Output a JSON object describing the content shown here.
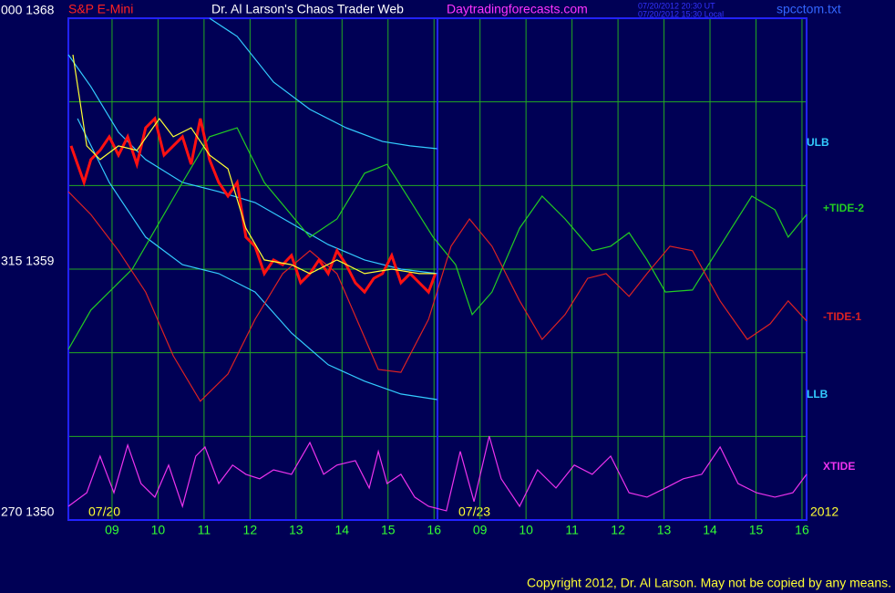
{
  "chart_data": {
    "type": "line",
    "symbol": "S&P E-Mini",
    "title": "Dr. Al Larson's Chaos Trader Web",
    "site": "Daytradingforecasts.com",
    "timestamps": [
      "07/20/2012 20:30 UT",
      "07/20/2012 15:30 Local"
    ],
    "file": "spcctom.txt",
    "date_labels": [
      "07/20",
      "07/23",
      "2012"
    ],
    "footer": "Copyright 2012, Dr. Al Larson. May not be copied by any means.",
    "xlim": [
      0.05,
      16.1
    ],
    "xticks": [
      {
        "value": 1,
        "label": "09"
      },
      {
        "value": 2,
        "label": "10"
      },
      {
        "value": 3,
        "label": "11"
      },
      {
        "value": 4,
        "label": "12"
      },
      {
        "value": 5,
        "label": "13"
      },
      {
        "value": 6,
        "label": "14"
      },
      {
        "value": 7,
        "label": "15"
      },
      {
        "value": 8,
        "label": "16"
      },
      {
        "value": 9,
        "label": "09"
      },
      {
        "value": 10,
        "label": "10"
      },
      {
        "value": 11,
        "label": "11"
      },
      {
        "value": 12,
        "label": "12"
      },
      {
        "value": 13,
        "label": "13"
      },
      {
        "value": 14,
        "label": "14"
      },
      {
        "value": 15,
        "label": "15"
      },
      {
        "value": 16,
        "label": "16"
      }
    ],
    "ylim": [
      1350,
      1368
    ],
    "yticks": [
      {
        "value": 1368,
        "label": "000 1368"
      },
      {
        "value": 1359,
        "label": "315 1359"
      },
      {
        "value": 1350,
        "label": "270 1350"
      }
    ],
    "ygrid": [
      1353,
      1356,
      1362,
      1365
    ],
    "grid": true,
    "series": [
      {
        "name": "ULB",
        "color": "#33ccff",
        "x": [
          3.12,
          3.72,
          4.51,
          5.3,
          6.09,
          6.88,
          7.48,
          8.07
        ],
        "values": [
          1368,
          1367.35,
          1365.71,
          1364.73,
          1364.07,
          1363.58,
          1363.42,
          1363.32
        ]
      },
      {
        "color": "#33ccff",
        "x": [
          0.05,
          0.54,
          1.14,
          1.73,
          2.53,
          3.32,
          4.11,
          4.9,
          5.7,
          6.49,
          7.28,
          8.07
        ],
        "values": [
          1366.69,
          1365.55,
          1363.91,
          1362.93,
          1362.11,
          1361.78,
          1361.39,
          1360.64,
          1359.88,
          1359.33,
          1359.0,
          1358.84
        ]
      },
      {
        "name": "LLB",
        "color": "#33ccff",
        "x": [
          0.25,
          0.94,
          1.73,
          2.53,
          3.32,
          4.11,
          4.9,
          5.7,
          6.49,
          7.28,
          8.07
        ],
        "values": [
          1364.4,
          1362.11,
          1360.15,
          1359.16,
          1358.84,
          1358.18,
          1356.71,
          1355.57,
          1354.98,
          1354.52,
          1354.32
        ]
      },
      {
        "name": "+TIDE-2",
        "color": "#22cc22",
        "x": [
          0.05,
          0.54,
          1.44,
          2.53,
          3.12,
          3.72,
          4.31,
          5.3,
          5.89,
          6.49,
          6.98,
          7.48,
          7.98,
          8.47,
          8.83,
          9.26,
          9.86,
          10.35,
          10.85,
          11.44,
          11.84,
          12.24,
          12.63,
          13.03,
          13.62,
          14.22,
          14.91,
          15.41,
          15.7,
          16.1
        ],
        "values": [
          1356.12,
          1357.53,
          1359.0,
          1362.11,
          1363.75,
          1364.07,
          1362.11,
          1360.15,
          1360.8,
          1362.44,
          1362.76,
          1361.46,
          1360.15,
          1359.16,
          1357.37,
          1358.18,
          1360.47,
          1361.62,
          1360.8,
          1359.66,
          1359.82,
          1360.31,
          1359.33,
          1358.18,
          1358.25,
          1359.82,
          1361.62,
          1361.13,
          1360.15,
          1360.96
        ]
      },
      {
        "name": "-TIDE-1",
        "color": "#dd2222",
        "x": [
          0.05,
          0.54,
          1.14,
          1.73,
          2.33,
          2.92,
          3.52,
          4.11,
          4.71,
          5.3,
          5.89,
          6.49,
          6.79,
          7.28,
          7.88,
          8.37,
          8.77,
          9.26,
          9.86,
          10.35,
          10.85,
          11.34,
          11.74,
          12.24,
          12.63,
          13.13,
          13.62,
          14.22,
          14.81,
          15.31,
          15.7,
          16.1
        ],
        "values": [
          1361.78,
          1360.96,
          1359.66,
          1358.18,
          1355.89,
          1354.26,
          1355.24,
          1357.2,
          1358.84,
          1359.66,
          1358.84,
          1356.55,
          1355.4,
          1355.3,
          1357.2,
          1359.82,
          1360.8,
          1359.82,
          1357.86,
          1356.48,
          1357.37,
          1358.67,
          1358.84,
          1358.02,
          1358.84,
          1359.82,
          1359.66,
          1357.86,
          1356.48,
          1357.04,
          1357.86,
          1357.14
        ]
      },
      {
        "name": "XTIDE",
        "color": "#ee33ee",
        "x": [
          0.05,
          0.45,
          0.74,
          1.04,
          1.34,
          1.63,
          1.93,
          2.23,
          2.53,
          2.82,
          3.02,
          3.32,
          3.62,
          3.91,
          4.21,
          4.51,
          4.9,
          5.3,
          5.6,
          5.89,
          6.29,
          6.59,
          6.79,
          6.98,
          7.28,
          7.58,
          7.88,
          8.27,
          8.57,
          8.87,
          9.2,
          9.46,
          9.86,
          10.25,
          10.65,
          11.05,
          11.44,
          11.84,
          12.24,
          12.63,
          13.03,
          13.42,
          13.82,
          14.22,
          14.61,
          15.01,
          15.41,
          15.8,
          16.1
        ],
        "values": [
          1350.49,
          1350.98,
          1352.29,
          1350.98,
          1352.69,
          1351.31,
          1350.82,
          1351.97,
          1350.49,
          1352.29,
          1352.62,
          1351.31,
          1351.97,
          1351.64,
          1351.48,
          1351.8,
          1351.64,
          1352.78,
          1351.64,
          1351.97,
          1352.13,
          1351.15,
          1352.46,
          1351.31,
          1351.64,
          1350.82,
          1350.49,
          1350.33,
          1352.46,
          1350.66,
          1353.01,
          1351.48,
          1350.49,
          1351.8,
          1351.15,
          1351.97,
          1351.64,
          1352.29,
          1350.98,
          1350.82,
          1351.15,
          1351.48,
          1351.64,
          1352.62,
          1351.31,
          1350.98,
          1350.82,
          1350.98,
          1351.64
        ]
      },
      {
        "color": "#ff1111",
        "x": [
          0.11,
          0.25,
          0.39,
          0.54,
          0.74,
          0.94,
          1.14,
          1.34,
          1.54,
          1.73,
          1.93,
          2.13,
          2.33,
          2.53,
          2.72,
          2.92,
          3.12,
          3.32,
          3.52,
          3.72,
          3.91,
          4.11,
          4.31,
          4.51,
          4.71,
          4.9,
          5.1,
          5.3,
          5.5,
          5.7,
          5.89,
          6.09,
          6.29,
          6.49,
          6.69,
          6.88,
          7.08,
          7.28,
          7.48,
          7.68,
          7.88,
          8.03
        ],
        "values": [
          1363.42,
          1362.76,
          1362.11,
          1362.93,
          1363.26,
          1363.75,
          1363.09,
          1363.75,
          1362.76,
          1364.07,
          1364.4,
          1363.09,
          1363.42,
          1363.75,
          1362.76,
          1364.4,
          1362.93,
          1362.11,
          1361.62,
          1362.11,
          1360.15,
          1359.82,
          1358.84,
          1359.33,
          1359.16,
          1359.49,
          1358.51,
          1358.84,
          1359.33,
          1358.84,
          1359.66,
          1359.16,
          1358.51,
          1358.18,
          1358.67,
          1358.84,
          1359.49,
          1358.51,
          1358.84,
          1358.51,
          1358.18,
          1358.84
        ]
      },
      {
        "color": "#ffff33",
        "x": [
          0.15,
          0.45,
          0.74,
          1.14,
          1.54,
          2.03,
          2.33,
          2.72,
          3.12,
          3.52,
          3.91,
          4.31,
          4.9,
          5.3,
          5.89,
          6.49,
          7.08,
          7.68,
          8.03
        ],
        "values": [
          1366.69,
          1363.42,
          1362.93,
          1363.42,
          1363.26,
          1364.4,
          1363.75,
          1364.07,
          1363.09,
          1362.6,
          1360.47,
          1359.33,
          1359.16,
          1358.84,
          1359.33,
          1358.84,
          1359.0,
          1358.84,
          1358.84
        ]
      }
    ]
  }
}
